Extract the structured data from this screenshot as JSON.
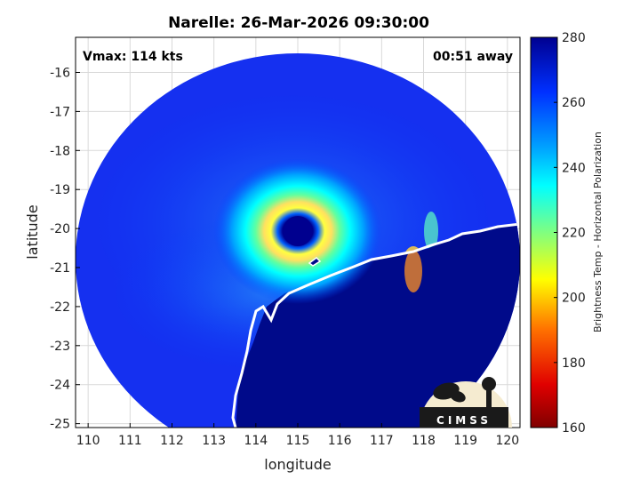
{
  "chart_data": {
    "type": "heatmap",
    "title": "Narelle: 26-Mar-2026 09:30:00",
    "xlabel": "longitude",
    "ylabel": "latitude",
    "xlim": [
      109.7,
      120.3
    ],
    "ylim": [
      -25.1,
      -15.1
    ],
    "x_ticks": [
      110,
      111,
      112,
      113,
      114,
      115,
      116,
      117,
      118,
      119,
      120
    ],
    "y_ticks": [
      -16,
      -17,
      -18,
      -19,
      -20,
      -21,
      -22,
      -23,
      -24,
      -25
    ],
    "grid": true,
    "annotations": {
      "vmax": "Vmax: 114 kts",
      "time_away": "00:51 away"
    },
    "colorbar": {
      "label": "Brightness Temp - Horizontal Polarization",
      "range": [
        160,
        280
      ],
      "ticks": [
        160,
        180,
        200,
        220,
        240,
        260,
        280
      ],
      "colormap": [
        "#800000",
        "#ff0000",
        "#ff8000",
        "#ffff00",
        "#80ff80",
        "#00ffff",
        "#0080ff",
        "#0000ff",
        "#00008f"
      ]
    },
    "storm": {
      "eye_center": {
        "lon": 114.85,
        "lat": -20.05
      },
      "eye_tb": 270,
      "eyewall_tb": 205,
      "background_tb": 262
    },
    "logo": "CIMSS"
  }
}
